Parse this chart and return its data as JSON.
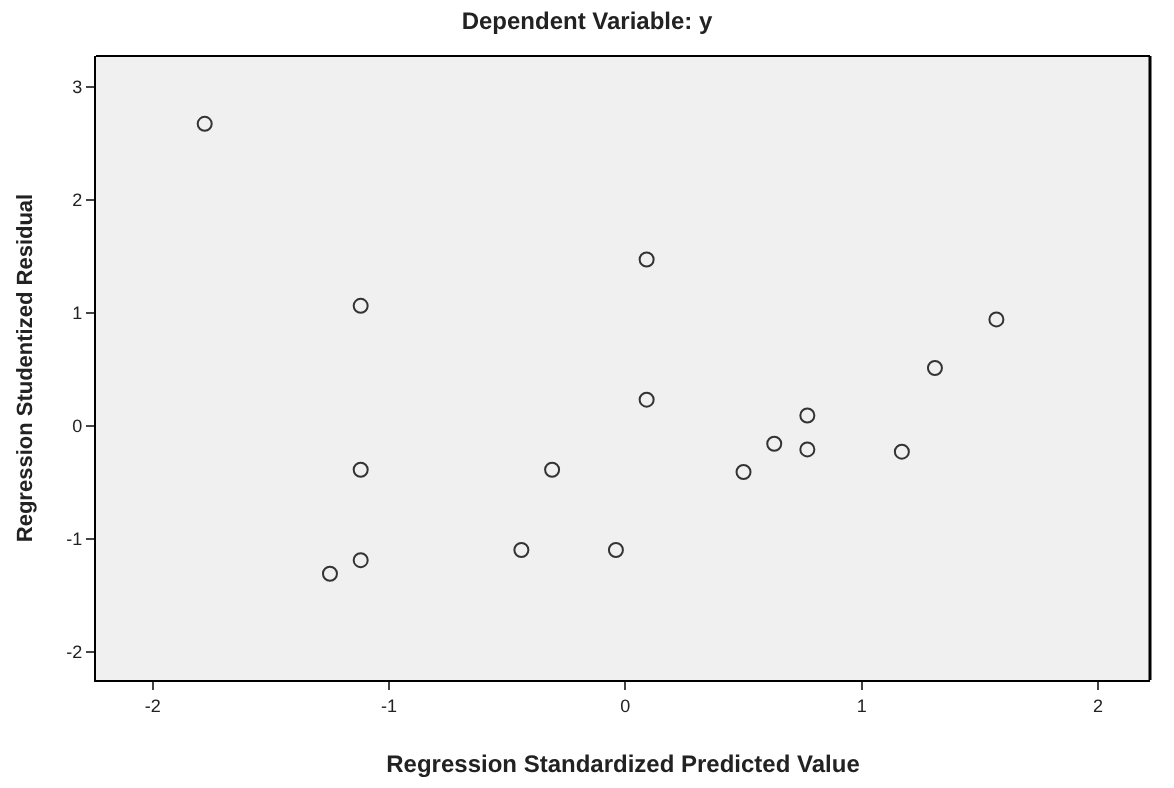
{
  "chart_data": {
    "type": "scatter",
    "title": "Dependent Variable: y",
    "xlabel": "Regression Standardized Predicted Value",
    "ylabel": "Regression Studentized Residual",
    "x": [
      -1.78,
      -1.12,
      -1.12,
      -1.12,
      -1.25,
      -0.31,
      -0.44,
      -0.04,
      0.09,
      0.09,
      0.5,
      0.63,
      0.77,
      0.77,
      1.17,
      1.31,
      1.57
    ],
    "series": [
      {
        "color": "#333333",
        "values": [
          2.67,
          1.06,
          -0.39,
          -1.19,
          -1.31,
          -0.39,
          -1.1,
          -1.1,
          1.47,
          0.23,
          -0.41,
          -0.16,
          0.09,
          -0.21,
          -0.23,
          0.51,
          0.94
        ]
      }
    ],
    "xlim": [
      -2.24,
      2.22
    ],
    "ylim": [
      -2.25,
      3.27
    ],
    "xticks": [
      -2,
      -1,
      0,
      1,
      2
    ],
    "yticks": [
      -2,
      -1,
      0,
      1,
      2,
      3
    ],
    "marker": "circle"
  }
}
